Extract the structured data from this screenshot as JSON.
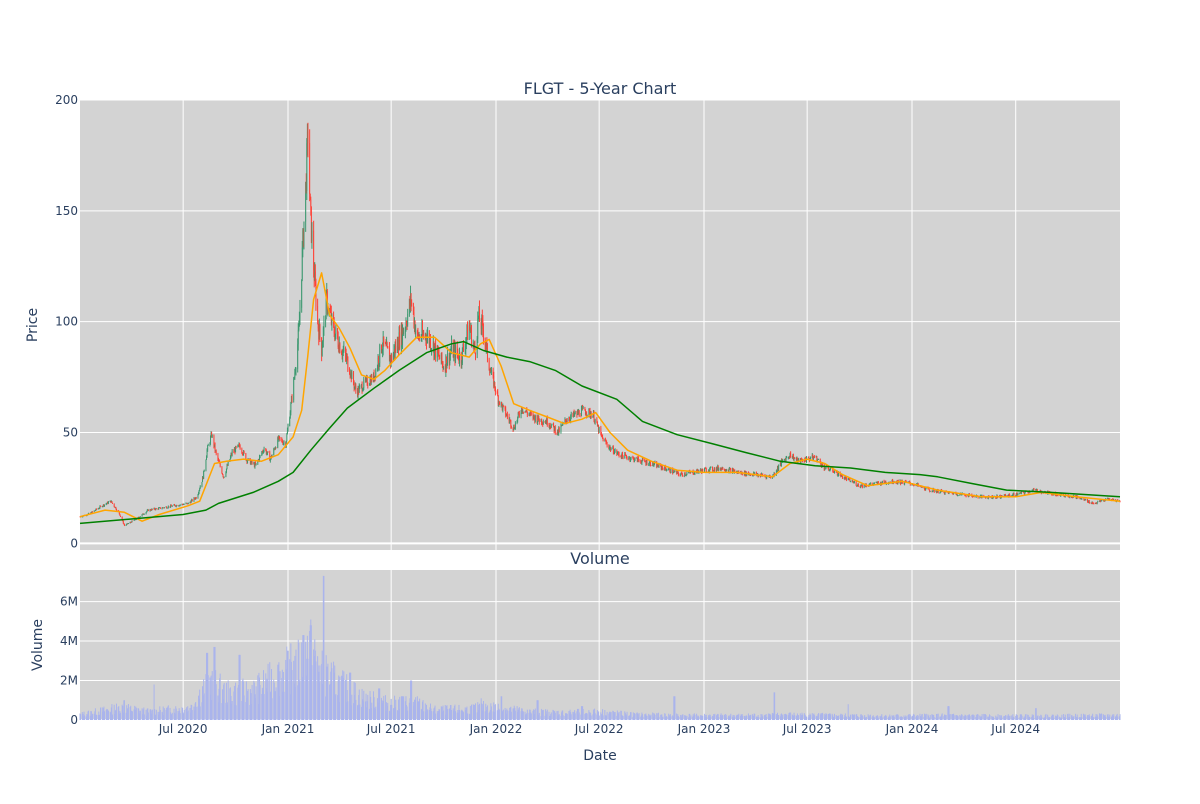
{
  "chart_data": [
    {
      "type": "candlestick",
      "title": "FLGT - 5-Year Chart",
      "xlabel": "",
      "ylabel": "Price",
      "ylim": [
        -3,
        200
      ],
      "ytick_values": [
        0,
        50,
        100,
        150,
        200
      ],
      "ytick_labels": [
        "0",
        "50",
        "100",
        "150",
        "200"
      ],
      "xlim": [
        "2020-01-02",
        "2024-12-31"
      ],
      "grid": true,
      "colors": {
        "up": "#3d9970",
        "down": "#ff4136",
        "short_ma": "#ffa500",
        "long_ma": "#008000",
        "plot_bg": "#d3d3d3"
      },
      "price_path": [
        [
          "2020-01-02",
          12
        ],
        [
          "2020-01-20",
          13.5
        ],
        [
          "2020-02-10",
          17
        ],
        [
          "2020-02-25",
          19
        ],
        [
          "2020-03-10",
          14
        ],
        [
          "2020-03-20",
          8
        ],
        [
          "2020-04-10",
          11
        ],
        [
          "2020-05-01",
          15
        ],
        [
          "2020-05-25",
          16
        ],
        [
          "2020-06-15",
          17
        ],
        [
          "2020-07-10",
          18
        ],
        [
          "2020-07-25",
          21
        ],
        [
          "2020-08-05",
          30
        ],
        [
          "2020-08-12",
          42
        ],
        [
          "2020-08-20",
          49
        ],
        [
          "2020-08-28",
          40
        ],
        [
          "2020-09-10",
          30
        ],
        [
          "2020-09-25",
          41
        ],
        [
          "2020-10-08",
          44
        ],
        [
          "2020-10-20",
          38
        ],
        [
          "2020-11-05",
          35
        ],
        [
          "2020-11-20",
          43
        ],
        [
          "2020-12-01",
          38
        ],
        [
          "2020-12-15",
          47
        ],
        [
          "2020-12-28",
          45
        ],
        [
          "2021-01-05",
          60
        ],
        [
          "2021-01-12",
          75
        ],
        [
          "2021-01-20",
          95
        ],
        [
          "2021-01-26",
          130
        ],
        [
          "2021-02-01",
          160
        ],
        [
          "2021-02-05",
          185
        ],
        [
          "2021-02-09",
          150
        ],
        [
          "2021-02-15",
          125
        ],
        [
          "2021-02-22",
          100
        ],
        [
          "2021-03-01",
          88
        ],
        [
          "2021-03-10",
          110
        ],
        [
          "2021-03-20",
          98
        ],
        [
          "2021-04-01",
          90
        ],
        [
          "2021-04-15",
          82
        ],
        [
          "2021-05-01",
          68
        ],
        [
          "2021-05-15",
          72
        ],
        [
          "2021-06-01",
          75
        ],
        [
          "2021-06-15",
          90
        ],
        [
          "2021-07-01",
          83
        ],
        [
          "2021-07-15",
          92
        ],
        [
          "2021-07-25",
          98
        ],
        [
          "2021-08-05",
          110
        ],
        [
          "2021-08-15",
          93
        ],
        [
          "2021-09-01",
          94
        ],
        [
          "2021-09-15",
          88
        ],
        [
          "2021-10-01",
          80
        ],
        [
          "2021-10-15",
          87
        ],
        [
          "2021-11-01",
          84
        ],
        [
          "2021-11-15",
          98
        ],
        [
          "2021-11-25",
          86
        ],
        [
          "2021-12-01",
          102
        ],
        [
          "2021-12-10",
          96
        ],
        [
          "2021-12-20",
          80
        ],
        [
          "2022-01-05",
          65
        ],
        [
          "2022-01-15",
          60
        ],
        [
          "2022-02-01",
          52
        ],
        [
          "2022-02-15",
          61
        ],
        [
          "2022-03-01",
          58
        ],
        [
          "2022-03-15",
          56
        ],
        [
          "2022-04-01",
          55
        ],
        [
          "2022-04-20",
          50
        ],
        [
          "2022-05-05",
          56
        ],
        [
          "2022-05-20",
          58
        ],
        [
          "2022-06-05",
          60
        ],
        [
          "2022-06-20",
          58
        ],
        [
          "2022-07-05",
          48
        ],
        [
          "2022-07-20",
          43
        ],
        [
          "2022-08-05",
          40
        ],
        [
          "2022-09-01",
          38
        ],
        [
          "2022-10-01",
          36
        ],
        [
          "2022-11-01",
          33
        ],
        [
          "2022-11-20",
          31
        ],
        [
          "2023-01-01",
          33
        ],
        [
          "2023-02-01",
          34
        ],
        [
          "2023-03-01",
          32
        ],
        [
          "2023-04-01",
          31
        ],
        [
          "2023-05-01",
          30
        ],
        [
          "2023-05-15",
          36
        ],
        [
          "2023-06-01",
          40
        ],
        [
          "2023-06-15",
          37
        ],
        [
          "2023-07-01",
          38
        ],
        [
          "2023-07-15",
          39
        ],
        [
          "2023-08-01",
          34
        ],
        [
          "2023-08-15",
          33
        ],
        [
          "2023-09-01",
          30
        ],
        [
          "2023-10-01",
          26
        ],
        [
          "2023-11-01",
          27
        ],
        [
          "2023-12-01",
          28
        ],
        [
          "2024-01-01",
          27
        ],
        [
          "2024-02-01",
          24
        ],
        [
          "2024-03-01",
          23
        ],
        [
          "2024-04-01",
          22
        ],
        [
          "2024-05-01",
          21
        ],
        [
          "2024-06-01",
          21
        ],
        [
          "2024-07-01",
          22
        ],
        [
          "2024-08-01",
          24
        ],
        [
          "2024-08-20",
          23
        ],
        [
          "2024-09-15",
          22
        ],
        [
          "2024-10-15",
          21
        ],
        [
          "2024-11-15",
          18
        ],
        [
          "2024-12-10",
          20
        ],
        [
          "2024-12-31",
          19
        ]
      ],
      "short_ma": [
        [
          "2020-01-02",
          12
        ],
        [
          "2020-02-15",
          15
        ],
        [
          "2020-03-20",
          14
        ],
        [
          "2020-04-20",
          10
        ],
        [
          "2020-05-20",
          13
        ],
        [
          "2020-07-10",
          17
        ],
        [
          "2020-07-30",
          19
        ],
        [
          "2020-08-25",
          36
        ],
        [
          "2020-09-15",
          37
        ],
        [
          "2020-10-15",
          38
        ],
        [
          "2020-11-15",
          37
        ],
        [
          "2020-12-15",
          40
        ],
        [
          "2021-01-10",
          48
        ],
        [
          "2021-01-25",
          60
        ],
        [
          "2021-02-05",
          85
        ],
        [
          "2021-02-15",
          110
        ],
        [
          "2021-03-01",
          122
        ],
        [
          "2021-03-15",
          103
        ],
        [
          "2021-04-01",
          97
        ],
        [
          "2021-04-20",
          88
        ],
        [
          "2021-05-10",
          76
        ],
        [
          "2021-06-01",
          74
        ],
        [
          "2021-06-20",
          78
        ],
        [
          "2021-07-15",
          85
        ],
        [
          "2021-08-15",
          93
        ],
        [
          "2021-09-15",
          93
        ],
        [
          "2021-10-15",
          86
        ],
        [
          "2021-11-15",
          84
        ],
        [
          "2021-12-05",
          90
        ],
        [
          "2021-12-20",
          92
        ],
        [
          "2022-01-10",
          80
        ],
        [
          "2022-02-01",
          63
        ],
        [
          "2022-03-01",
          60
        ],
        [
          "2022-04-01",
          57
        ],
        [
          "2022-05-01",
          54
        ],
        [
          "2022-06-01",
          56
        ],
        [
          "2022-06-25",
          59
        ],
        [
          "2022-07-20",
          50
        ],
        [
          "2022-08-20",
          42
        ],
        [
          "2022-10-01",
          37
        ],
        [
          "2022-11-15",
          33
        ],
        [
          "2023-01-01",
          32
        ],
        [
          "2023-03-01",
          32
        ],
        [
          "2023-05-01",
          30
        ],
        [
          "2023-06-01",
          36
        ],
        [
          "2023-07-01",
          38
        ],
        [
          "2023-08-01",
          36
        ],
        [
          "2023-09-01",
          31
        ],
        [
          "2023-10-15",
          26
        ],
        [
          "2023-12-15",
          28
        ],
        [
          "2024-02-15",
          24
        ],
        [
          "2024-05-01",
          21
        ],
        [
          "2024-07-01",
          21
        ],
        [
          "2024-08-15",
          23
        ],
        [
          "2024-10-15",
          21
        ],
        [
          "2024-12-31",
          19
        ]
      ],
      "long_ma": [
        [
          "2020-01-02",
          9
        ],
        [
          "2020-04-01",
          11
        ],
        [
          "2020-07-01",
          13
        ],
        [
          "2020-08-10",
          15
        ],
        [
          "2020-09-01",
          18
        ],
        [
          "2020-11-01",
          23
        ],
        [
          "2020-12-15",
          28
        ],
        [
          "2021-01-10",
          32
        ],
        [
          "2021-02-10",
          42
        ],
        [
          "2021-03-15",
          52
        ],
        [
          "2021-04-15",
          61
        ],
        [
          "2021-06-01",
          70
        ],
        [
          "2021-07-15",
          78
        ],
        [
          "2021-09-01",
          86
        ],
        [
          "2021-10-15",
          90
        ],
        [
          "2021-11-05",
          91
        ],
        [
          "2021-12-10",
          87
        ],
        [
          "2022-01-20",
          84
        ],
        [
          "2022-03-01",
          82
        ],
        [
          "2022-04-15",
          78
        ],
        [
          "2022-06-01",
          71
        ],
        [
          "2022-08-01",
          65
        ],
        [
          "2022-09-15",
          55
        ],
        [
          "2022-11-15",
          49
        ],
        [
          "2023-01-15",
          45
        ],
        [
          "2023-03-15",
          41
        ],
        [
          "2023-05-15",
          37
        ],
        [
          "2023-07-15",
          35
        ],
        [
          "2023-09-15",
          34
        ],
        [
          "2023-11-15",
          32
        ],
        [
          "2024-01-15",
          31
        ],
        [
          "2024-02-15",
          30
        ],
        [
          "2024-04-15",
          27
        ],
        [
          "2024-06-15",
          24
        ],
        [
          "2024-09-01",
          23
        ],
        [
          "2024-12-31",
          21
        ]
      ]
    },
    {
      "type": "bar",
      "title": "Volume",
      "xlabel": "Date",
      "ylabel": "Volume",
      "ylim": [
        0,
        7600000
      ],
      "ytick_values": [
        0,
        2000000,
        4000000,
        6000000
      ],
      "ytick_labels": [
        "0",
        "2M",
        "4M",
        "6M"
      ],
      "xlim": [
        "2020-01-02",
        "2024-12-31"
      ],
      "xtick_values": [
        "2020-07-01",
        "2021-01-01",
        "2021-07-01",
        "2022-01-01",
        "2022-07-01",
        "2023-01-01",
        "2023-07-01",
        "2024-01-01",
        "2024-07-01"
      ],
      "xtick_labels": [
        "Jul 2020",
        "Jan 2021",
        "Jul 2021",
        "Jan 2022",
        "Jul 2022",
        "Jan 2023",
        "Jul 2023",
        "Jan 2024",
        "Jul 2024"
      ],
      "grid": true,
      "colors": {
        "bar": "#aab4ec",
        "plot_bg": "#d3d3d3"
      },
      "volume_level": [
        [
          "2020-01-02",
          300000
        ],
        [
          "2020-03-15",
          700000
        ],
        [
          "2020-05-01",
          450000
        ],
        [
          "2020-07-15",
          700000
        ],
        [
          "2020-08-15",
          2200000
        ],
        [
          "2020-09-15",
          1500000
        ],
        [
          "2020-11-01",
          1600000
        ],
        [
          "2020-12-20",
          2600000
        ],
        [
          "2021-01-25",
          3200000
        ],
        [
          "2021-02-05",
          4200000
        ],
        [
          "2021-03-01",
          2700000
        ],
        [
          "2021-04-01",
          2000000
        ],
        [
          "2021-05-15",
          1200000
        ],
        [
          "2021-07-01",
          900000
        ],
        [
          "2021-08-10",
          1000000
        ],
        [
          "2021-09-15",
          550000
        ],
        [
          "2021-11-15",
          600000
        ],
        [
          "2021-12-15",
          750000
        ],
        [
          "2022-01-15",
          650000
        ],
        [
          "2022-03-01",
          450000
        ],
        [
          "2022-05-01",
          400000
        ],
        [
          "2022-07-01",
          450000
        ],
        [
          "2022-09-01",
          300000
        ],
        [
          "2022-12-01",
          250000
        ],
        [
          "2023-03-01",
          250000
        ],
        [
          "2023-06-01",
          300000
        ],
        [
          "2023-09-01",
          250000
        ],
        [
          "2023-12-01",
          230000
        ],
        [
          "2024-03-01",
          250000
        ],
        [
          "2024-06-01",
          220000
        ],
        [
          "2024-09-01",
          230000
        ],
        [
          "2024-12-31",
          260000
        ]
      ],
      "volume_spikes": [
        [
          "2020-03-20",
          1000000
        ],
        [
          "2020-05-10",
          1800000
        ],
        [
          "2020-08-12",
          3400000
        ],
        [
          "2020-08-25",
          3700000
        ],
        [
          "2020-10-08",
          3300000
        ],
        [
          "2020-12-15",
          2800000
        ],
        [
          "2021-01-10",
          3000000
        ],
        [
          "2021-01-28",
          4300000
        ],
        [
          "2021-02-04",
          3100000
        ],
        [
          "2021-02-10",
          4800000
        ],
        [
          "2021-03-05",
          7300000
        ],
        [
          "2021-03-10",
          2700000
        ],
        [
          "2021-04-20",
          2400000
        ],
        [
          "2021-06-10",
          1600000
        ],
        [
          "2021-07-20",
          1200000
        ],
        [
          "2021-08-05",
          2000000
        ],
        [
          "2021-12-05",
          1100000
        ],
        [
          "2022-01-10",
          1200000
        ],
        [
          "2022-03-15",
          1000000
        ],
        [
          "2022-06-01",
          700000
        ],
        [
          "2022-11-10",
          1200000
        ],
        [
          "2023-05-05",
          1400000
        ],
        [
          "2023-09-10",
          800000
        ],
        [
          "2024-03-05",
          700000
        ],
        [
          "2024-08-05",
          600000
        ]
      ]
    }
  ]
}
